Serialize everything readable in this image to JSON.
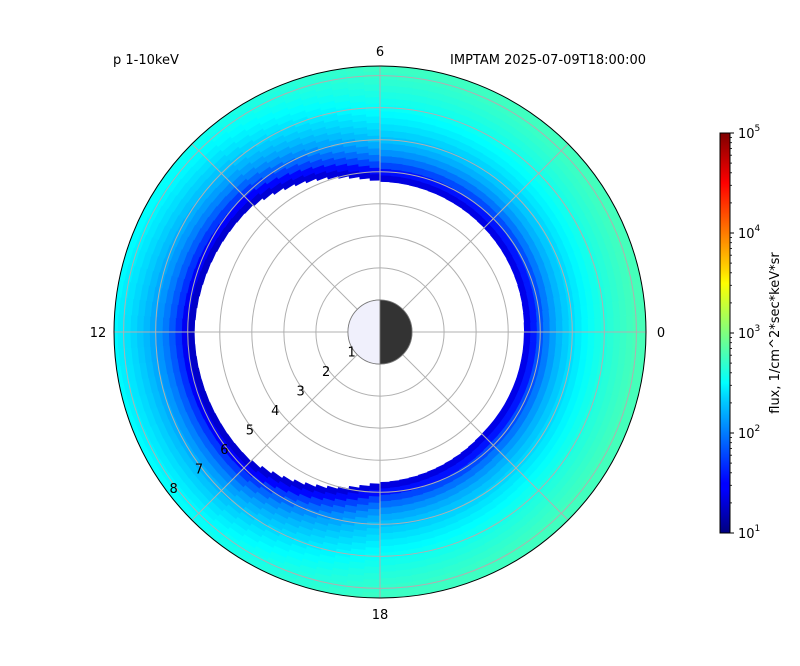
{
  "chart_data": {
    "type": "heatmap",
    "projection": "polar",
    "title_left": "p 1-10keV",
    "title_right": "IMPTAM 2025-07-09T18:00:00",
    "angular_labels": [
      "0",
      "6",
      "12",
      "18"
    ],
    "radial_labels": [
      "1",
      "2",
      "3",
      "4",
      "5",
      "6",
      "7",
      "8"
    ],
    "radial_range": [
      0,
      8.3
    ],
    "grid": true,
    "colorbar": {
      "label": "flux, 1/cm^2*sec*keV*sr",
      "scale": "log",
      "range": [
        10,
        100000
      ],
      "ticks": [
        {
          "base": "10",
          "exp": "1"
        },
        {
          "base": "10",
          "exp": "2"
        },
        {
          "base": "10",
          "exp": "3"
        },
        {
          "base": "10",
          "exp": "4"
        },
        {
          "base": "10",
          "exp": "5"
        }
      ],
      "colormap": "jet"
    },
    "inner_boundary_by_mlt": [
      {
        "mlt": 0,
        "r": 4.5
      },
      {
        "mlt": 3,
        "r": 4.6
      },
      {
        "mlt": 6,
        "r": 4.7
      },
      {
        "mlt": 9,
        "r": 5.6
      },
      {
        "mlt": 12,
        "r": 5.8
      },
      {
        "mlt": 15,
        "r": 5.7
      },
      {
        "mlt": 18,
        "r": 4.7
      },
      {
        "mlt": 21,
        "r": 4.5
      }
    ],
    "flux_profile": [
      {
        "r_above_boundary": 0.0,
        "flux": 20
      },
      {
        "r_above_boundary": 0.3,
        "flux": 40
      },
      {
        "r_above_boundary": 0.6,
        "flux": 80
      },
      {
        "r_above_boundary": 1.0,
        "flux": 150
      },
      {
        "r_above_boundary": 1.6,
        "flux": 250
      },
      {
        "r_above_boundary": 2.4,
        "flux": 400
      },
      {
        "r_above_boundary": 3.5,
        "flux": 600
      }
    ],
    "mlt_flux_factor": [
      {
        "mlt": 0,
        "factor": 1.0
      },
      {
        "mlt": 6,
        "factor": 0.75
      },
      {
        "mlt": 12,
        "factor": 0.35
      },
      {
        "mlt": 18,
        "factor": 0.75
      }
    ],
    "earth": {
      "r": 1,
      "day_color": "#f0f0fc",
      "night_color": "#333333"
    },
    "grid_color": "#b0b0b0"
  }
}
